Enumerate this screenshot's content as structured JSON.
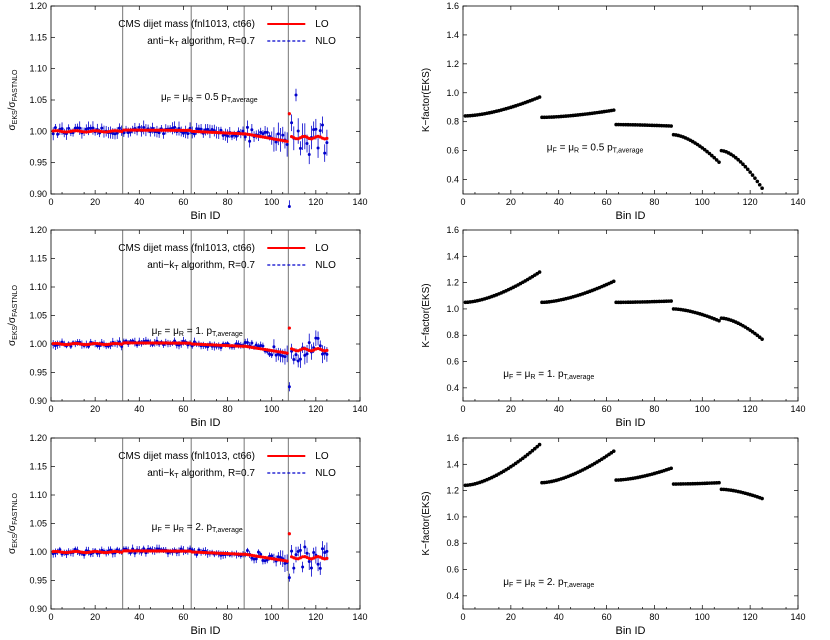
{
  "chart_data": [
    {
      "type": "scatter",
      "xlabel": "Bin ID",
      "ylabel": "σ_EKS/σ_FASTNLO",
      "xlim": [
        0,
        140
      ],
      "ylim": [
        0.9,
        1.2
      ],
      "xticks": [
        "0",
        "20",
        "40",
        "60",
        "80",
        "100",
        "120",
        "140"
      ],
      "yticks": [
        "0.90",
        "0.95",
        "1.00",
        "1.05",
        "1.10",
        "1.15",
        "1.20"
      ],
      "legend": {
        "placement": "top-right",
        "entries": [
          "LO",
          "NLO"
        ]
      },
      "text_lines": [
        "CMS dijet mass (fnl1013, ct66)",
        "anti−k_T algorithm, R=0.7"
      ],
      "scale_label": "μ_F = μ_R = 0.5 p_T,average",
      "vertical_lines_x": [
        32.5,
        63.5,
        87.5,
        107.5
      ],
      "colors": {
        "lo": "#ff0000",
        "nlo": "#0000cc"
      },
      "amp": 1.4,
      "series": [
        {
          "name": "LO",
          "y": []
        },
        {
          "name": "NLO",
          "y": [],
          "err": []
        }
      ]
    },
    {
      "type": "scatter",
      "xlabel": "Bin ID",
      "ylabel": "K−factor(EKS)",
      "xlim": [
        0,
        140
      ],
      "ylim": [
        0.3,
        1.6
      ],
      "xticks": [
        "0",
        "20",
        "40",
        "60",
        "80",
        "100",
        "120",
        "140"
      ],
      "yticks": [
        "0.4",
        "0.6",
        "0.8",
        "1.0",
        "1.2",
        "1.4",
        "1.6"
      ],
      "scale_label": "μ_F = μ_R = 0.5 p_T,average",
      "segments": [
        {
          "x0": 1,
          "x1": 32,
          "y0": 0.84,
          "y1": 0.97
        },
        {
          "x0": 33,
          "x1": 63,
          "y0": 0.83,
          "y1": 0.88
        },
        {
          "x0": 64,
          "x1": 87,
          "y0": 0.78,
          "y1": 0.77
        },
        {
          "x0": 88,
          "x1": 107,
          "y0": 0.71,
          "y1": 0.52
        },
        {
          "x0": 108,
          "x1": 125,
          "y0": 0.6,
          "y1": 0.34
        }
      ]
    },
    {
      "type": "scatter",
      "xlabel": "Bin ID",
      "ylabel": "σ_EKS/σ_FASTNLO",
      "xlim": [
        0,
        140
      ],
      "ylim": [
        0.9,
        1.2
      ],
      "xticks": [
        "0",
        "20",
        "40",
        "60",
        "80",
        "100",
        "120",
        "140"
      ],
      "yticks": [
        "0.90",
        "0.95",
        "1.00",
        "1.05",
        "1.10",
        "1.15",
        "1.20"
      ],
      "legend": {
        "placement": "top-right",
        "entries": [
          "LO",
          "NLO"
        ]
      },
      "text_lines": [
        "CMS dijet mass (fnl1013, ct66)",
        "anti−k_T algorithm, R=0.7"
      ],
      "scale_label": "μ_F = μ_R = 1. p_T,average",
      "vertical_lines_x": [
        32.5,
        63.5,
        87.5,
        107.5
      ],
      "colors": {
        "lo": "#ff0000",
        "nlo": "#0000cc"
      },
      "amp": 1.0,
      "series": [
        {
          "name": "LO",
          "y": []
        },
        {
          "name": "NLO",
          "y": [],
          "err": []
        }
      ]
    },
    {
      "type": "scatter",
      "xlabel": "Bin ID",
      "ylabel": "K−factor(EKS)",
      "xlim": [
        0,
        140
      ],
      "ylim": [
        0.3,
        1.6
      ],
      "xticks": [
        "0",
        "20",
        "40",
        "60",
        "80",
        "100",
        "120",
        "140"
      ],
      "yticks": [
        "0.4",
        "0.6",
        "0.8",
        "1.0",
        "1.2",
        "1.4",
        "1.6"
      ],
      "scale_label": "μ_F = μ_R = 1. p_T,average",
      "segments": [
        {
          "x0": 1,
          "x1": 32,
          "y0": 1.05,
          "y1": 1.28
        },
        {
          "x0": 33,
          "x1": 63,
          "y0": 1.05,
          "y1": 1.21
        },
        {
          "x0": 64,
          "x1": 87,
          "y0": 1.05,
          "y1": 1.06
        },
        {
          "x0": 88,
          "x1": 107,
          "y0": 1.0,
          "y1": 0.91
        },
        {
          "x0": 108,
          "x1": 125,
          "y0": 0.93,
          "y1": 0.77
        }
      ]
    },
    {
      "type": "scatter",
      "xlabel": "Bin ID",
      "ylabel": "σ_EKS/σ_FASTNLO",
      "xlim": [
        0,
        140
      ],
      "ylim": [
        0.9,
        1.2
      ],
      "xticks": [
        "0",
        "20",
        "40",
        "60",
        "80",
        "100",
        "120",
        "140"
      ],
      "yticks": [
        "0.90",
        "0.95",
        "1.00",
        "1.05",
        "1.10",
        "1.15",
        "1.20"
      ],
      "legend": {
        "placement": "top-right",
        "entries": [
          "LO",
          "NLO"
        ]
      },
      "text_lines": [
        "CMS dijet mass (fnl1013, ct66)",
        "anti−k_T algorithm, R=0.7"
      ],
      "scale_label": "μ_F = μ_R = 2. p_T,average",
      "vertical_lines_x": [
        32.5,
        63.5,
        87.5,
        107.5
      ],
      "colors": {
        "lo": "#ff0000",
        "nlo": "#0000cc"
      },
      "amp": 1.0,
      "series": [
        {
          "name": "LO",
          "y": []
        },
        {
          "name": "NLO",
          "y": [],
          "err": []
        }
      ]
    },
    {
      "type": "scatter",
      "xlabel": "Bin ID",
      "ylabel": "K−factor(EKS)",
      "xlim": [
        0,
        140
      ],
      "ylim": [
        0.3,
        1.6
      ],
      "xticks": [
        "0",
        "20",
        "40",
        "60",
        "80",
        "100",
        "120",
        "140"
      ],
      "yticks": [
        "0.4",
        "0.6",
        "0.8",
        "1.0",
        "1.2",
        "1.4",
        "1.6"
      ],
      "scale_label": "μ_F = μ_R = 2. p_T,average",
      "segments": [
        {
          "x0": 1,
          "x1": 32,
          "y0": 1.24,
          "y1": 1.55
        },
        {
          "x0": 33,
          "x1": 63,
          "y0": 1.26,
          "y1": 1.5
        },
        {
          "x0": 64,
          "x1": 87,
          "y0": 1.28,
          "y1": 1.37
        },
        {
          "x0": 88,
          "x1": 107,
          "y0": 1.25,
          "y1": 1.26
        },
        {
          "x0": 108,
          "x1": 125,
          "y0": 1.21,
          "y1": 1.14
        }
      ]
    }
  ]
}
